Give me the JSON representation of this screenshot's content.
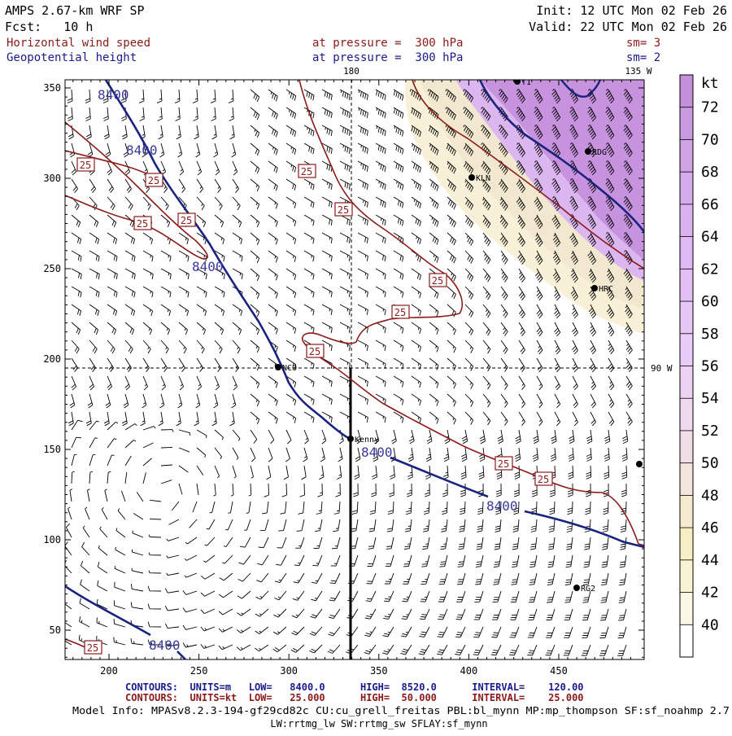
{
  "header": {
    "title": "AMPS 2.67-km WRF SP",
    "forecast": "Fcst:   10 h",
    "init": "Init: 12 UTC Mon 02 Feb 26",
    "valid": "Valid: 22 UTC Mon 02 Feb 26",
    "field1_name": "Horizontal wind speed",
    "field1_level": "at pressure =  300 hPa",
    "field1_smooth": "sm= 3",
    "field2_name": "Geopotential height",
    "field2_level": "at pressure =  300 hPa",
    "field2_smooth": "sm= 2"
  },
  "map": {
    "x_ticks": [
      "200",
      "250",
      "300",
      "350",
      "400",
      "450"
    ],
    "y_ticks": [
      "350",
      "300",
      "250",
      "200",
      "150",
      "100",
      "50"
    ],
    "lon_labels": {
      "top_180": "180",
      "top_135w": "135 W",
      "right_90w": "90 W"
    },
    "stations": [
      {
        "id": "NCO",
        "label": "NCO"
      },
      {
        "id": "kenny",
        "label": "Kenny"
      },
      {
        "id": "kln",
        "label": "KLN"
      },
      {
        "id": "rdg",
        "label": "RDG"
      },
      {
        "id": "hrc",
        "label": "HRC"
      },
      {
        "id": "rg2",
        "label": "RG2"
      },
      {
        "id": "top",
        "label": "T1"
      }
    ],
    "height_contour_label": "8400",
    "speed_contour_label": "25"
  },
  "colorbar": {
    "unit": "kt",
    "levels": [
      "72",
      "70",
      "68",
      "66",
      "64",
      "62",
      "60",
      "58",
      "56",
      "54",
      "52",
      "50",
      "48",
      "46",
      "44",
      "42",
      "40"
    ],
    "colors": [
      "#c390d9",
      "#c99ae0",
      "#cfa3e6",
      "#d4abeb",
      "#d9b2ef",
      "#deb9f3",
      "#e2c0f5",
      "#e6c7f6",
      "#eacdf6",
      "#edd3f3",
      "#efd9ee",
      "#f1dee6",
      "#f3e4dc",
      "#f5ebd0",
      "#f7f0c6",
      "#f9f3d5",
      "#fbf7e6",
      "#ffffff"
    ]
  },
  "footer": {
    "contours1": "CONTOURS:  UNITS=m   LOW=   8400.0      HIGH=  8520.0      INTERVAL=    120.00",
    "contours2": "CONTOURS:  UNITS=kt  LOW=   25.000      HIGH=  50.000      INTERVAL=    25.000",
    "model_info": "Model Info: MPASv8.2.3-194-gf29cd82c CU:cu_grell_freitas PBL:bl_mynn MP:mp_thompson SF:sf_noahmp 2.7",
    "model_info2": "LW:rrtmg_lw SW:rrtmg_sw SFLAY:sf_mynn"
  },
  "colors": {
    "speed_contour": "#8b1a1a",
    "height_contour": "#1a237e",
    "header_red": "#8b1a1a",
    "header_blue": "#1a1a8b"
  }
}
